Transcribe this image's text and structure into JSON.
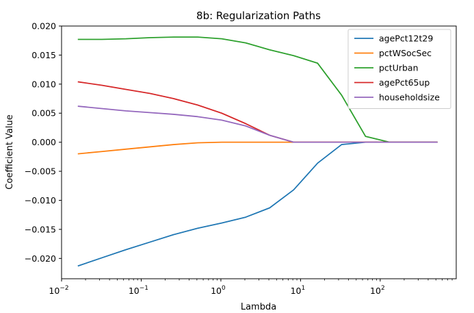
{
  "chart_data": {
    "type": "line",
    "title": "8b: Regularization Paths",
    "xlabel": "Lambda",
    "ylabel": "Coefficient Value",
    "xscale": "log",
    "xlim": [
      0.01,
      900
    ],
    "ylim": [
      -0.0235,
      0.02
    ],
    "grid": false,
    "legend_position": "top-right",
    "x_ticks": [
      {
        "value": 0.01,
        "base": "10",
        "exp": "−2"
      },
      {
        "value": 0.1,
        "base": "10",
        "exp": "−1"
      },
      {
        "value": 1,
        "base": "10",
        "exp": "0"
      },
      {
        "value": 10,
        "base": "10",
        "exp": "1"
      },
      {
        "value": 100,
        "base": "10",
        "exp": "2"
      }
    ],
    "y_ticks": [
      {
        "value": 0.02,
        "label": "0.020"
      },
      {
        "value": 0.015,
        "label": "0.015"
      },
      {
        "value": 0.01,
        "label": "0.010"
      },
      {
        "value": 0.005,
        "label": "0.005"
      },
      {
        "value": 0.0,
        "label": "0.000"
      },
      {
        "value": -0.005,
        "label": "−0.005"
      },
      {
        "value": -0.01,
        "label": "−0.010"
      },
      {
        "value": -0.015,
        "label": "−0.015"
      },
      {
        "value": -0.02,
        "label": "−0.020"
      }
    ],
    "x": [
      0.016,
      0.032,
      0.064,
      0.128,
      0.256,
      0.512,
      1.024,
      2.048,
      4.096,
      8.192,
      16.38,
      32.77,
      65.5,
      131,
      262,
      524
    ],
    "series": [
      {
        "name": "agePct12t29",
        "color": "#1f77b4",
        "values": [
          -0.0213,
          -0.0199,
          -0.0185,
          -0.0172,
          -0.0159,
          -0.0148,
          -0.0139,
          -0.0129,
          -0.0113,
          -0.0082,
          -0.0036,
          -0.0004,
          0.0,
          0.0,
          0.0,
          0.0
        ]
      },
      {
        "name": "pctWSocSec",
        "color": "#ff7f0e",
        "values": [
          -0.002,
          -0.0016,
          -0.0012,
          -0.0008,
          -0.0004,
          -0.0001,
          0.0,
          0.0,
          0.0,
          0.0,
          0.0,
          0.0,
          0.0,
          0.0,
          0.0,
          0.0
        ]
      },
      {
        "name": "pctUrban",
        "color": "#2ca02c",
        "values": [
          0.0177,
          0.0177,
          0.0178,
          0.018,
          0.0181,
          0.0181,
          0.0178,
          0.0171,
          0.0159,
          0.0149,
          0.0136,
          0.0081,
          0.001,
          0.0,
          0.0,
          0.0
        ]
      },
      {
        "name": "agePct65up",
        "color": "#d62728",
        "values": [
          0.0104,
          0.0098,
          0.0091,
          0.0084,
          0.0075,
          0.0064,
          0.005,
          0.0032,
          0.0012,
          0.0,
          0.0,
          0.0,
          0.0,
          0.0,
          0.0,
          0.0
        ]
      },
      {
        "name": "householdsize",
        "color": "#9467bd",
        "values": [
          0.0062,
          0.0058,
          0.0054,
          0.0051,
          0.0048,
          0.0044,
          0.0038,
          0.0028,
          0.0012,
          0.0,
          0.0,
          0.0,
          0.0,
          0.0,
          0.0,
          0.0
        ]
      }
    ]
  }
}
